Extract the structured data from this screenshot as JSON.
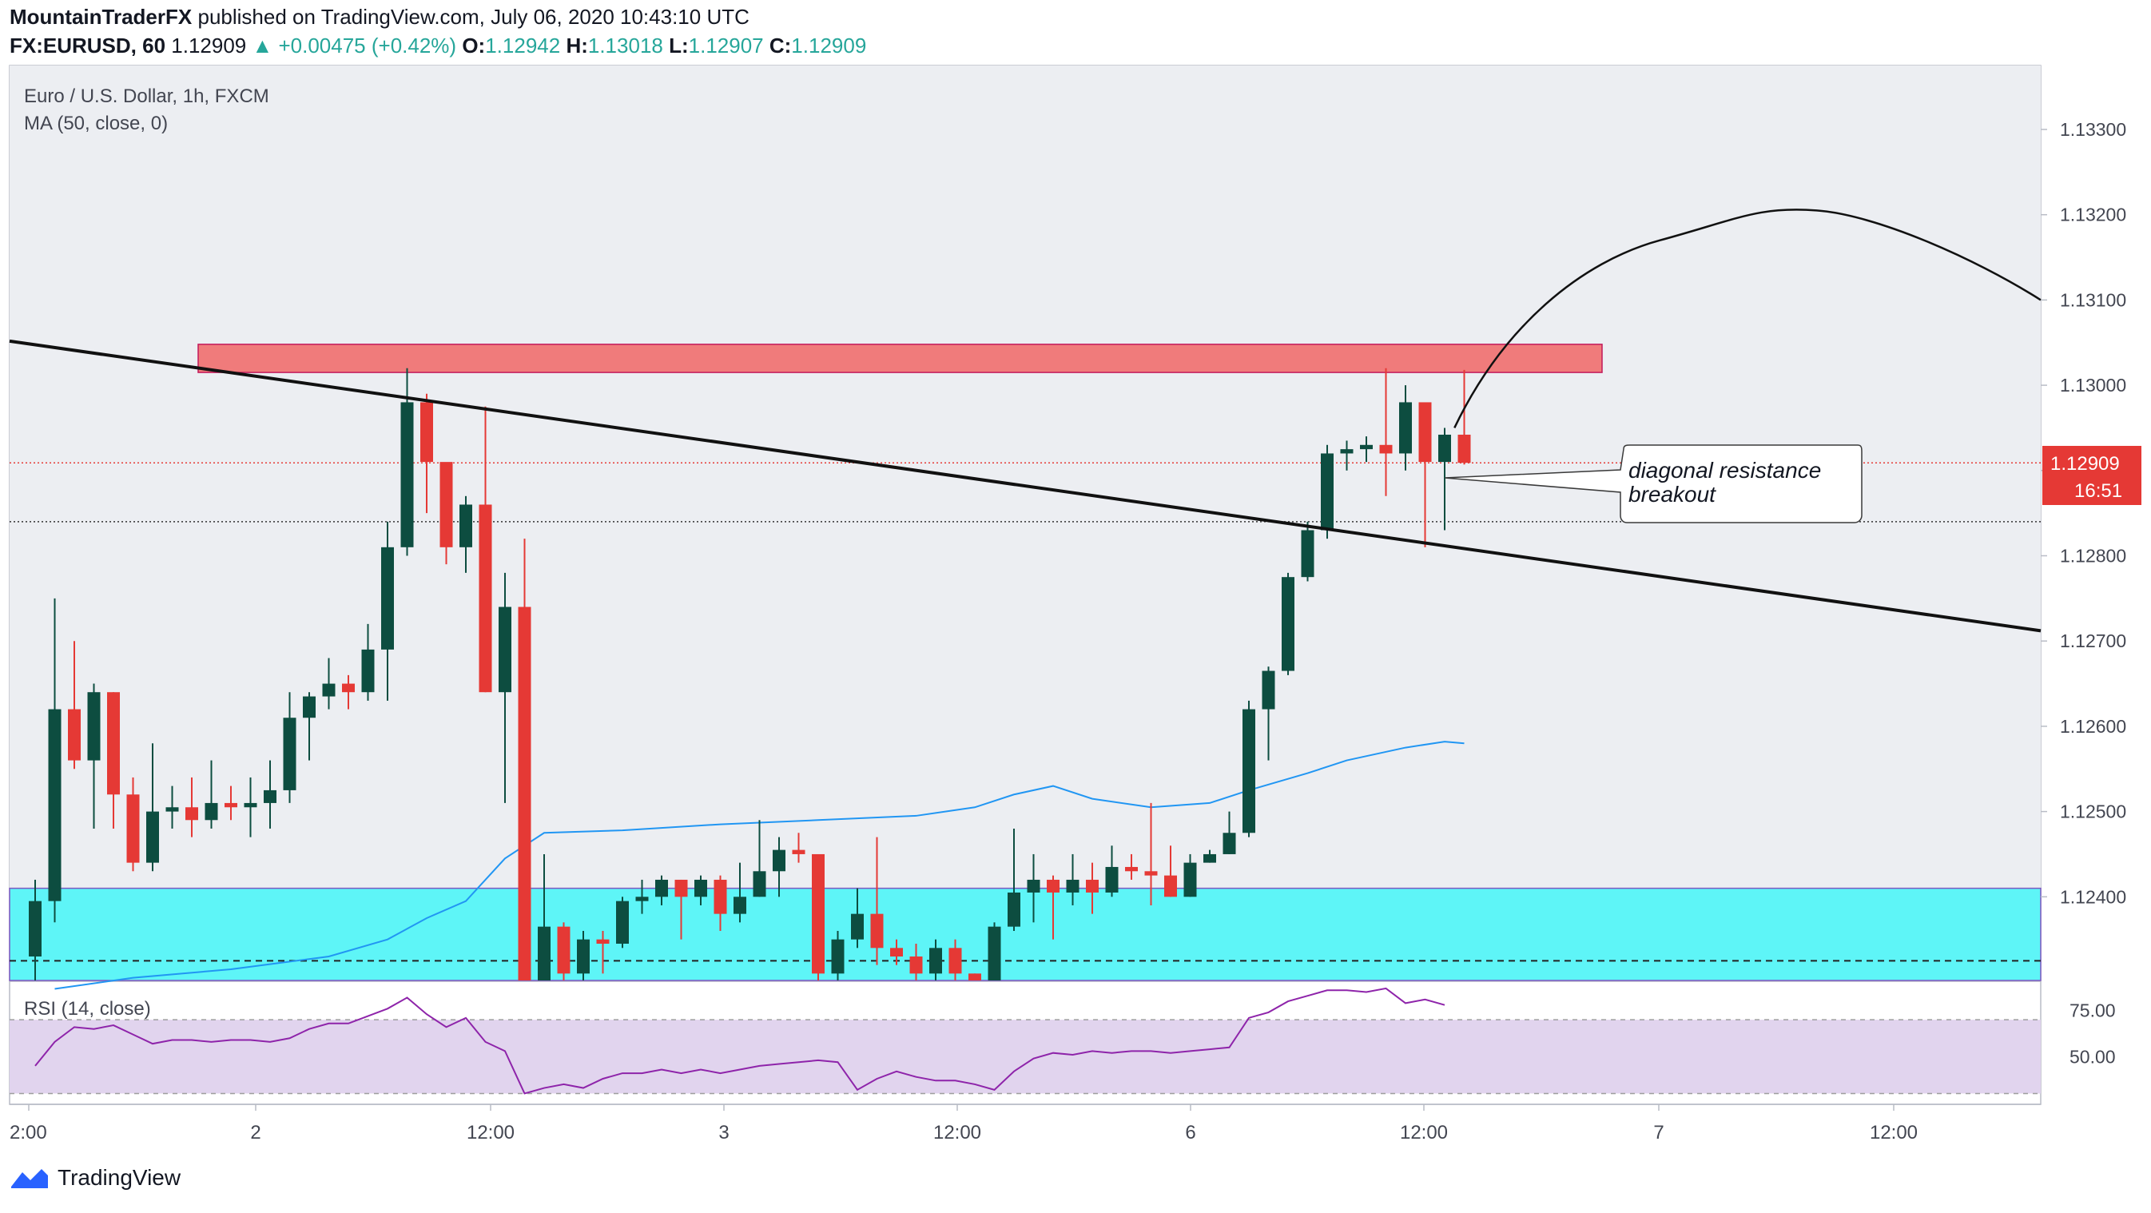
{
  "header": {
    "publisher": "MountainTraderFX",
    "published_text": "published on TradingView.com, July 06, 2020 10:43:10 UTC",
    "symbol": "FX:EURUSD, 60",
    "last": "1.12909",
    "change": "+0.00475 (+0.42%)",
    "o_label": "O:",
    "o": "1.12942",
    "h_label": "H:",
    "h": "1.13018",
    "l_label": "L:",
    "l": "1.12907",
    "c_label": "C:",
    "c": "1.12909"
  },
  "legend": {
    "title": "Euro / U.S. Dollar, 1h, FXCM",
    "ma": "MA (50, close, 0)",
    "rsi": "RSI (14, close)"
  },
  "price_badge": {
    "price": "1.12909",
    "countdown": "16:51",
    "color": "#e53935"
  },
  "annotation": {
    "line1": "diagonal resistance",
    "line2": "breakout"
  },
  "footer": {
    "brand": "TradingView"
  },
  "colors": {
    "up": "#0d4d40",
    "down": "#e53935",
    "ma": "#2196f3",
    "rsi": "#8e24aa",
    "resistance_zone": "#f07b7b",
    "support_zone": "#5ef5f7"
  },
  "chart_data": {
    "type": "candlestick",
    "y_range": [
      1.1229,
      1.1342
    ],
    "y_ticks": [
      "1.13300",
      "1.13200",
      "1.13100",
      "1.13000",
      "1.12900",
      "1.12800",
      "1.12700",
      "1.12600",
      "1.12500",
      "1.12400"
    ],
    "x_ticks": [
      "2:00",
      "2",
      "12:00",
      "3",
      "12:00",
      "6",
      "12:00",
      "7",
      "12:00"
    ],
    "rsi_ticks": [
      "75.00",
      "50.00"
    ],
    "rsi_bands": [
      70,
      30
    ],
    "resistance_zone": [
      1.13015,
      1.13048
    ],
    "support_zone": [
      1.12327,
      1.1241
    ],
    "dotted_level": 1.1284,
    "dashed_level": 1.12325,
    "trendline": [
      [
        0,
        1.13048
      ],
      [
        105,
        1.12712
      ]
    ],
    "candles": [
      [
        1.1233,
        1.12395,
        1.1242,
        1.1229
      ],
      [
        1.12395,
        1.1262,
        1.1275,
        1.1237
      ],
      [
        1.1262,
        1.1256,
        1.127,
        1.1255
      ],
      [
        1.1256,
        1.1264,
        1.1265,
        1.1248
      ],
      [
        1.1264,
        1.1252,
        1.1264,
        1.1248
      ],
      [
        1.1252,
        1.1244,
        1.1254,
        1.1243
      ],
      [
        1.1244,
        1.125,
        1.1258,
        1.1243
      ],
      [
        1.125,
        1.12505,
        1.1253,
        1.1248
      ],
      [
        1.12505,
        1.1249,
        1.1254,
        1.1247
      ],
      [
        1.1249,
        1.1251,
        1.1256,
        1.1248
      ],
      [
        1.1251,
        1.12505,
        1.1253,
        1.1249
      ],
      [
        1.12505,
        1.1251,
        1.1254,
        1.1247
      ],
      [
        1.1251,
        1.12525,
        1.1256,
        1.1248
      ],
      [
        1.12525,
        1.1261,
        1.1264,
        1.1251
      ],
      [
        1.1261,
        1.12635,
        1.1264,
        1.1256
      ],
      [
        1.12635,
        1.1265,
        1.1268,
        1.1262
      ],
      [
        1.1265,
        1.1264,
        1.1266,
        1.1262
      ],
      [
        1.1264,
        1.1269,
        1.1272,
        1.1263
      ],
      [
        1.1269,
        1.1281,
        1.1284,
        1.1263
      ],
      [
        1.1281,
        1.1298,
        1.1302,
        1.128
      ],
      [
        1.1298,
        1.1291,
        1.1299,
        1.1285
      ],
      [
        1.1291,
        1.1281,
        1.1287,
        1.1279
      ],
      [
        1.1281,
        1.1286,
        1.1287,
        1.1278
      ],
      [
        1.1286,
        1.1264,
        1.12975,
        1.1264
      ],
      [
        1.1264,
        1.1274,
        1.1278,
        1.1251
      ],
      [
        1.1274,
        1.123,
        1.1282,
        1.123
      ],
      [
        1.123,
        1.12365,
        1.1245,
        1.123
      ],
      [
        1.12365,
        1.1231,
        1.1237,
        1.123
      ],
      [
        1.1231,
        1.1235,
        1.1236,
        1.123
      ],
      [
        1.1235,
        1.12345,
        1.1236,
        1.1231
      ],
      [
        1.12345,
        1.12395,
        1.124,
        1.1234
      ],
      [
        1.12395,
        1.124,
        1.1242,
        1.1238
      ],
      [
        1.124,
        1.1242,
        1.12425,
        1.1239
      ],
      [
        1.1242,
        1.124,
        1.1242,
        1.1235
      ],
      [
        1.124,
        1.1242,
        1.12425,
        1.1239
      ],
      [
        1.1242,
        1.1238,
        1.12425,
        1.1236
      ],
      [
        1.1238,
        1.124,
        1.1244,
        1.1237
      ],
      [
        1.124,
        1.1243,
        1.1249,
        1.124
      ],
      [
        1.1243,
        1.12455,
        1.1247,
        1.124
      ],
      [
        1.12455,
        1.1245,
        1.12475,
        1.1244
      ],
      [
        1.1245,
        1.1231,
        1.1245,
        1.123
      ],
      [
        1.1231,
        1.1235,
        1.1236,
        1.123
      ],
      [
        1.1235,
        1.1238,
        1.1241,
        1.1234
      ],
      [
        1.1238,
        1.1234,
        1.1247,
        1.1232
      ],
      [
        1.1234,
        1.1233,
        1.1235,
        1.1232
      ],
      [
        1.1233,
        1.1231,
        1.12345,
        1.123
      ],
      [
        1.1231,
        1.1234,
        1.1235,
        1.123
      ],
      [
        1.1234,
        1.1231,
        1.1235,
        1.123
      ],
      [
        1.1231,
        1.123,
        1.1231,
        1.123
      ],
      [
        1.123,
        1.12365,
        1.1237,
        1.123
      ],
      [
        1.12365,
        1.12405,
        1.1248,
        1.1236
      ],
      [
        1.12405,
        1.1242,
        1.1245,
        1.1237
      ],
      [
        1.1242,
        1.12405,
        1.12425,
        1.1235
      ],
      [
        1.12405,
        1.1242,
        1.1245,
        1.1239
      ],
      [
        1.1242,
        1.12405,
        1.1244,
        1.1238
      ],
      [
        1.12405,
        1.12435,
        1.1246,
        1.124
      ],
      [
        1.12435,
        1.1243,
        1.1245,
        1.1242
      ],
      [
        1.1243,
        1.12425,
        1.1251,
        1.1239
      ],
      [
        1.12425,
        1.124,
        1.1246,
        1.124
      ],
      [
        1.124,
        1.1244,
        1.1245,
        1.124
      ],
      [
        1.1244,
        1.1245,
        1.12455,
        1.1244
      ],
      [
        1.1245,
        1.12475,
        1.125,
        1.1245
      ],
      [
        1.12475,
        1.1262,
        1.1263,
        1.1247
      ],
      [
        1.1262,
        1.12665,
        1.1267,
        1.1256
      ],
      [
        1.12665,
        1.12775,
        1.1278,
        1.1266
      ],
      [
        1.12775,
        1.1283,
        1.1284,
        1.1277
      ],
      [
        1.1283,
        1.1292,
        1.1293,
        1.1282
      ],
      [
        1.1292,
        1.12925,
        1.12935,
        1.129
      ],
      [
        1.12925,
        1.1293,
        1.1294,
        1.1291
      ],
      [
        1.1293,
        1.1292,
        1.1302,
        1.1287
      ],
      [
        1.1292,
        1.1298,
        1.13,
        1.129
      ],
      [
        1.1298,
        1.1291,
        1.1298,
        1.1281
      ],
      [
        1.1291,
        1.12942,
        1.1295,
        1.1283
      ],
      [
        1.12942,
        1.12909,
        1.13018,
        1.12907
      ]
    ],
    "ma": [
      [
        1,
        1.12292
      ],
      [
        5,
        1.12305
      ],
      [
        10,
        1.12315
      ],
      [
        15,
        1.1233
      ],
      [
        18,
        1.1235
      ],
      [
        20,
        1.12375
      ],
      [
        22,
        1.12395
      ],
      [
        24,
        1.12445
      ],
      [
        26,
        1.12475
      ],
      [
        30,
        1.12478
      ],
      [
        35,
        1.12485
      ],
      [
        40,
        1.1249
      ],
      [
        45,
        1.12495
      ],
      [
        48,
        1.12505
      ],
      [
        50,
        1.1252
      ],
      [
        52,
        1.1253
      ],
      [
        54,
        1.12515
      ],
      [
        57,
        1.12505
      ],
      [
        60,
        1.1251
      ],
      [
        62,
        1.12525
      ],
      [
        65,
        1.12545
      ],
      [
        67,
        1.1256
      ],
      [
        70,
        1.12575
      ],
      [
        72,
        1.12582
      ],
      [
        73,
        1.1258
      ]
    ],
    "rsi": [
      [
        0,
        45
      ],
      [
        1,
        58
      ],
      [
        2,
        66
      ],
      [
        3,
        65
      ],
      [
        4,
        67
      ],
      [
        5,
        62
      ],
      [
        6,
        57
      ],
      [
        7,
        59
      ],
      [
        8,
        59
      ],
      [
        9,
        58
      ],
      [
        10,
        59
      ],
      [
        11,
        59
      ],
      [
        12,
        58
      ],
      [
        13,
        60
      ],
      [
        14,
        65
      ],
      [
        15,
        68
      ],
      [
        16,
        68
      ],
      [
        17,
        72
      ],
      [
        18,
        76
      ],
      [
        19,
        82
      ],
      [
        20,
        73
      ],
      [
        21,
        66
      ],
      [
        22,
        71
      ],
      [
        23,
        58
      ],
      [
        24,
        53
      ],
      [
        25,
        30
      ],
      [
        26,
        33
      ],
      [
        27,
        35
      ],
      [
        28,
        33
      ],
      [
        29,
        38
      ],
      [
        30,
        41
      ],
      [
        31,
        41
      ],
      [
        32,
        43
      ],
      [
        33,
        41
      ],
      [
        34,
        43
      ],
      [
        35,
        41
      ],
      [
        36,
        43
      ],
      [
        37,
        45
      ],
      [
        38,
        46
      ],
      [
        39,
        47
      ],
      [
        40,
        48
      ],
      [
        41,
        47
      ],
      [
        42,
        32
      ],
      [
        43,
        38
      ],
      [
        44,
        42
      ],
      [
        45,
        39
      ],
      [
        46,
        37
      ],
      [
        47,
        37
      ],
      [
        48,
        35
      ],
      [
        49,
        32
      ],
      [
        50,
        42
      ],
      [
        51,
        49
      ],
      [
        52,
        52
      ],
      [
        53,
        51
      ],
      [
        54,
        53
      ],
      [
        55,
        52
      ],
      [
        56,
        53
      ],
      [
        57,
        53
      ],
      [
        58,
        52
      ],
      [
        59,
        53
      ],
      [
        60,
        54
      ],
      [
        61,
        55
      ],
      [
        62,
        71
      ],
      [
        63,
        74
      ],
      [
        64,
        80
      ],
      [
        65,
        83
      ],
      [
        66,
        86
      ],
      [
        67,
        86
      ],
      [
        68,
        85
      ],
      [
        69,
        87
      ],
      [
        70,
        79
      ],
      [
        71,
        81
      ],
      [
        72,
        78
      ]
    ]
  }
}
